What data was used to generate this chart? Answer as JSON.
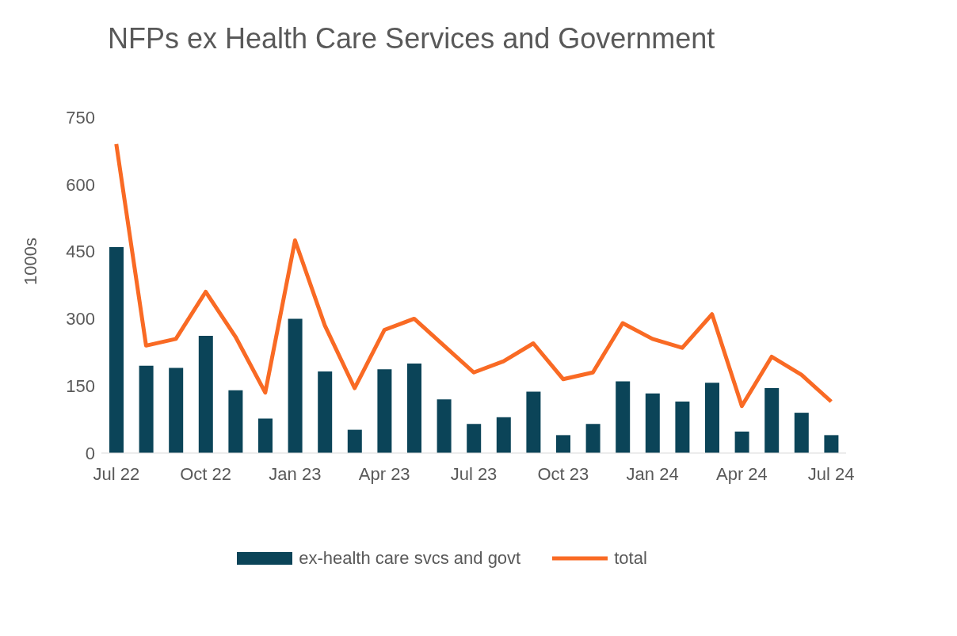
{
  "chart_data": {
    "type": "bar",
    "title": "NFPs ex Health Care Services and Government",
    "ylabel": "1000s",
    "categories": [
      "Jul 22",
      null,
      null,
      "Oct 22",
      null,
      null,
      "Jan 23",
      null,
      null,
      "Apr 23",
      null,
      null,
      "Jul 23",
      null,
      null,
      "Oct 23",
      null,
      null,
      "Jan 24",
      null,
      null,
      "Apr 24",
      null,
      null,
      "Jul 24"
    ],
    "series": [
      {
        "name": "ex-health care svcs and govt",
        "color": "#0b4458",
        "values": [
          460,
          195,
          190,
          262,
          140,
          77,
          300,
          182,
          52,
          187,
          200,
          120,
          65,
          80,
          137,
          40,
          65,
          160,
          133,
          115,
          157,
          48,
          145,
          90,
          40
        ]
      },
      {
        "name": "total",
        "type": "line",
        "color": "#f96a24",
        "values": [
          690,
          240,
          255,
          360,
          260,
          135,
          475,
          285,
          145,
          275,
          300,
          240,
          180,
          205,
          245,
          165,
          180,
          290,
          255,
          235,
          310,
          105,
          215,
          175,
          115
        ]
      }
    ],
    "ylim": [
      0,
      750
    ],
    "yticks": [
      0,
      150,
      300,
      450,
      600,
      750
    ],
    "grid": false,
    "legend": "bottom",
    "marker": "none"
  }
}
